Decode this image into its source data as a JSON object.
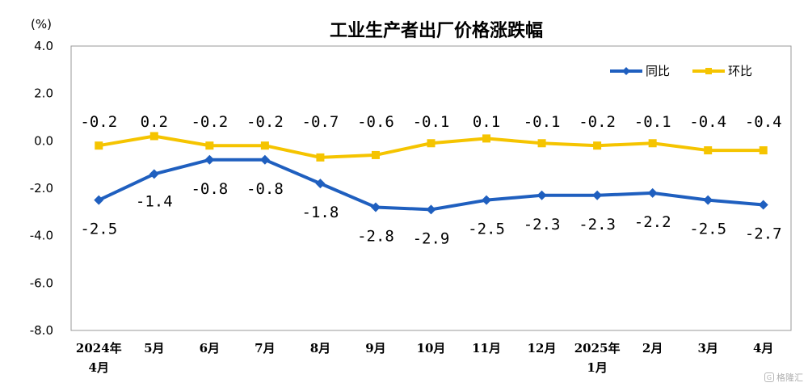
{
  "chart_data": {
    "type": "line",
    "title": "工业生产者出厂价格涨跌幅",
    "unit_label": "(%)",
    "ylim": [
      -8.0,
      4.0
    ],
    "yticks": [
      "4.0",
      "2.0",
      "0.0",
      "-2.0",
      "-4.0",
      "-6.0",
      "-8.0"
    ],
    "ytick_values": [
      4,
      2,
      0,
      -2,
      -4,
      -6,
      -8
    ],
    "categories": [
      [
        "2024年",
        "4月"
      ],
      [
        "5月"
      ],
      [
        "6月"
      ],
      [
        "7月"
      ],
      [
        "8月"
      ],
      [
        "9月"
      ],
      [
        "10月"
      ],
      [
        "11月"
      ],
      [
        "12月"
      ],
      [
        "2025年",
        "1月"
      ],
      [
        "2月"
      ],
      [
        "3月"
      ],
      [
        "4月"
      ]
    ],
    "series": [
      {
        "name": "同比",
        "color": "#1f5fbf",
        "marker": "diamond",
        "values": [
          -2.5,
          -1.4,
          -0.8,
          -0.8,
          -1.8,
          -2.8,
          -2.9,
          -2.5,
          -2.3,
          -2.3,
          -2.2,
          -2.5,
          -2.7
        ],
        "labels": [
          "-2.5",
          "-1.4",
          "-0.8",
          "-0.8",
          "-1.8",
          "-2.8",
          "-2.9",
          "-2.5",
          "-2.3",
          "-2.3",
          "-2.2",
          "-2.5",
          "-2.7"
        ]
      },
      {
        "name": "环比",
        "color": "#f5c400",
        "marker": "square",
        "values": [
          -0.2,
          0.2,
          -0.2,
          -0.2,
          -0.7,
          -0.6,
          -0.1,
          0.1,
          -0.1,
          -0.2,
          -0.1,
          -0.4,
          -0.4
        ],
        "labels": [
          "-0.2",
          "0.2",
          "-0.2",
          "-0.2",
          "-0.7",
          "-0.6",
          "-0.1",
          "0.1",
          "-0.1",
          "-0.2",
          "-0.1",
          "-0.4",
          "-0.4"
        ]
      }
    ],
    "legend_position": "top-right",
    "grid": false
  },
  "watermark": {
    "icon": "G",
    "text": "格隆汇"
  }
}
